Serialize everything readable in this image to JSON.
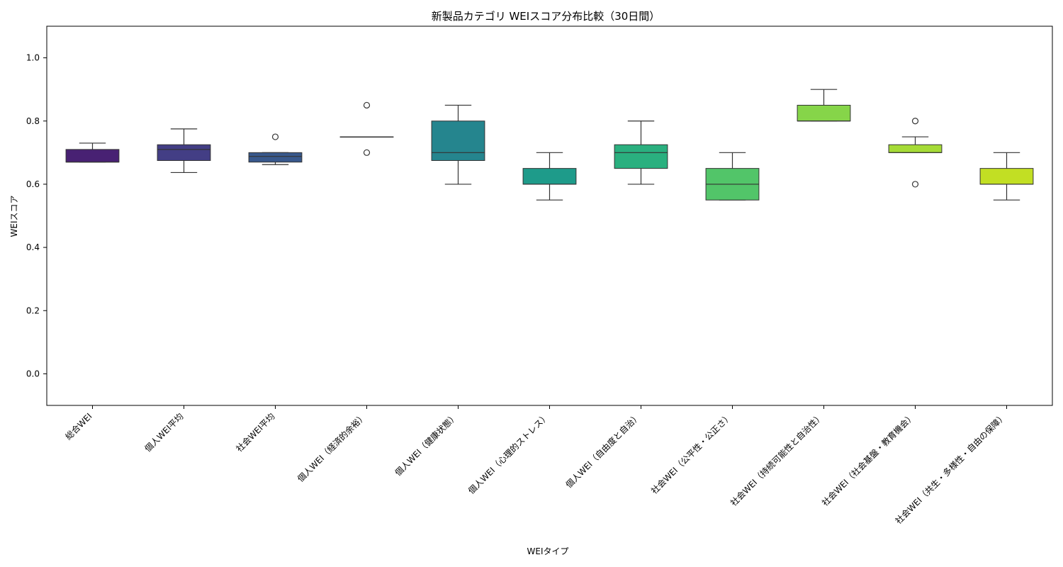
{
  "chart_data": {
    "type": "box",
    "title": "新製品カテゴリ WEIスコア分布比較（30日間）",
    "xlabel": "WEIタイプ",
    "ylabel": "WEIスコア",
    "ylim": [
      -0.1,
      1.1
    ],
    "yticks": [
      0.0,
      0.2,
      0.4,
      0.6,
      0.8,
      1.0
    ],
    "ytick_labels": [
      "0.0",
      "0.2",
      "0.4",
      "0.6",
      "0.8",
      "1.0"
    ],
    "grid": false,
    "categories": [
      "総合WEI",
      "個人WEI平均",
      "社会WEI平均",
      "個人WEI（経済的余裕）",
      "個人WEI（健康状態）",
      "個人WEI（心理的ストレス）",
      "個人WEI（自由度と自治）",
      "社会WEI（公平性・公正さ）",
      "社会WEI（持続可能性と自治性）",
      "社会WEI（社会基盤・教育機会）",
      "社会WEI（共生・多様性・自由の保障）"
    ],
    "boxes": [
      {
        "whislo": 0.67,
        "q1": 0.67,
        "med": 0.67,
        "q3": 0.71,
        "whishi": 0.73,
        "fliers": [],
        "color": "#482173"
      },
      {
        "whislo": 0.637,
        "q1": 0.675,
        "med": 0.71,
        "q3": 0.725,
        "whishi": 0.775,
        "fliers": [],
        "color": "#433e85"
      },
      {
        "whislo": 0.662,
        "q1": 0.67,
        "med": 0.688,
        "q3": 0.7,
        "whishi": 0.7,
        "fliers": [
          0.75
        ],
        "color": "#38588c"
      },
      {
        "whislo": 0.75,
        "q1": 0.75,
        "med": 0.75,
        "q3": 0.75,
        "whishi": 0.75,
        "fliers": [
          0.85,
          0.7
        ],
        "color": "#2d708e"
      },
      {
        "whislo": 0.6,
        "q1": 0.675,
        "med": 0.7,
        "q3": 0.8,
        "whishi": 0.85,
        "fliers": [],
        "color": "#25858e"
      },
      {
        "whislo": 0.55,
        "q1": 0.6,
        "med": 0.6,
        "q3": 0.65,
        "whishi": 0.7,
        "fliers": [],
        "color": "#1e9b8a"
      },
      {
        "whislo": 0.6,
        "q1": 0.65,
        "med": 0.7,
        "q3": 0.725,
        "whishi": 0.8,
        "fliers": [],
        "color": "#2ab07f"
      },
      {
        "whislo": 0.55,
        "q1": 0.55,
        "med": 0.6,
        "q3": 0.65,
        "whishi": 0.7,
        "fliers": [],
        "color": "#52c569"
      },
      {
        "whislo": 0.8,
        "q1": 0.8,
        "med": 0.8,
        "q3": 0.85,
        "whishi": 0.9,
        "fliers": [],
        "color": "#86d549"
      },
      {
        "whislo": 0.7,
        "q1": 0.7,
        "med": 0.7,
        "q3": 0.725,
        "whishi": 0.75,
        "fliers": [
          0.8,
          0.6
        ],
        "color": "#a5db36"
      },
      {
        "whislo": 0.55,
        "q1": 0.6,
        "med": 0.6,
        "q3": 0.65,
        "whishi": 0.7,
        "fliers": [],
        "color": "#c2df23"
      }
    ]
  }
}
